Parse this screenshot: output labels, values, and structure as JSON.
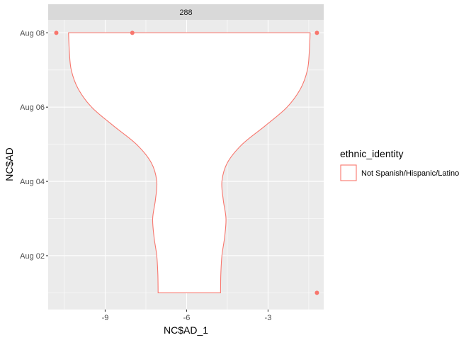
{
  "chart_data": {
    "type": "violin",
    "facet_label": "288",
    "xlabel": "NC$AD_1",
    "ylabel": "NC$AD",
    "xlim": [
      -11.1,
      -0.95
    ],
    "ylim": [
      0.55,
      8.35
    ],
    "x_ticks": [
      {
        "value": -9,
        "label": "-9"
      },
      {
        "value": -6,
        "label": "-6"
      },
      {
        "value": -3,
        "label": "-3"
      }
    ],
    "y_ticks": [
      {
        "value": 2,
        "label": "Aug 02"
      },
      {
        "value": 4,
        "label": "Aug 04"
      },
      {
        "value": 6,
        "label": "Aug 06"
      },
      {
        "value": 8,
        "label": "Aug 08"
      }
    ],
    "series": [
      {
        "name": "Not Spanish/Hispanic/Latino",
        "color": "#F8766D",
        "violin_center_x": -5.9,
        "violin_half_width_profile": [
          {
            "y": 1.0,
            "half_width": 1.15
          },
          {
            "y": 1.5,
            "half_width": 1.16
          },
          {
            "y": 2.0,
            "half_width": 1.2
          },
          {
            "y": 2.5,
            "half_width": 1.3
          },
          {
            "y": 3.0,
            "half_width": 1.35
          },
          {
            "y": 3.5,
            "half_width": 1.25
          },
          {
            "y": 4.0,
            "half_width": 1.2
          },
          {
            "y": 4.5,
            "half_width": 1.4
          },
          {
            "y": 5.0,
            "half_width": 1.95
          },
          {
            "y": 5.5,
            "half_width": 2.8
          },
          {
            "y": 6.0,
            "half_width": 3.6
          },
          {
            "y": 6.5,
            "half_width": 4.1
          },
          {
            "y": 7.0,
            "half_width": 4.35
          },
          {
            "y": 7.5,
            "half_width": 4.42
          },
          {
            "y": 8.0,
            "half_width": 4.45
          }
        ],
        "outlier_points": [
          {
            "x": -10.8,
            "y": 8.0
          },
          {
            "x": -8.0,
            "y": 8.0
          },
          {
            "x": -1.2,
            "y": 8.0
          },
          {
            "x": -1.2,
            "y": 1.0
          }
        ]
      }
    ],
    "legend": {
      "title": "ethnic_identity",
      "entries": [
        {
          "label": "Not Spanish/Hispanic/Latino",
          "color": "#F8766D"
        }
      ],
      "position": "right"
    }
  }
}
